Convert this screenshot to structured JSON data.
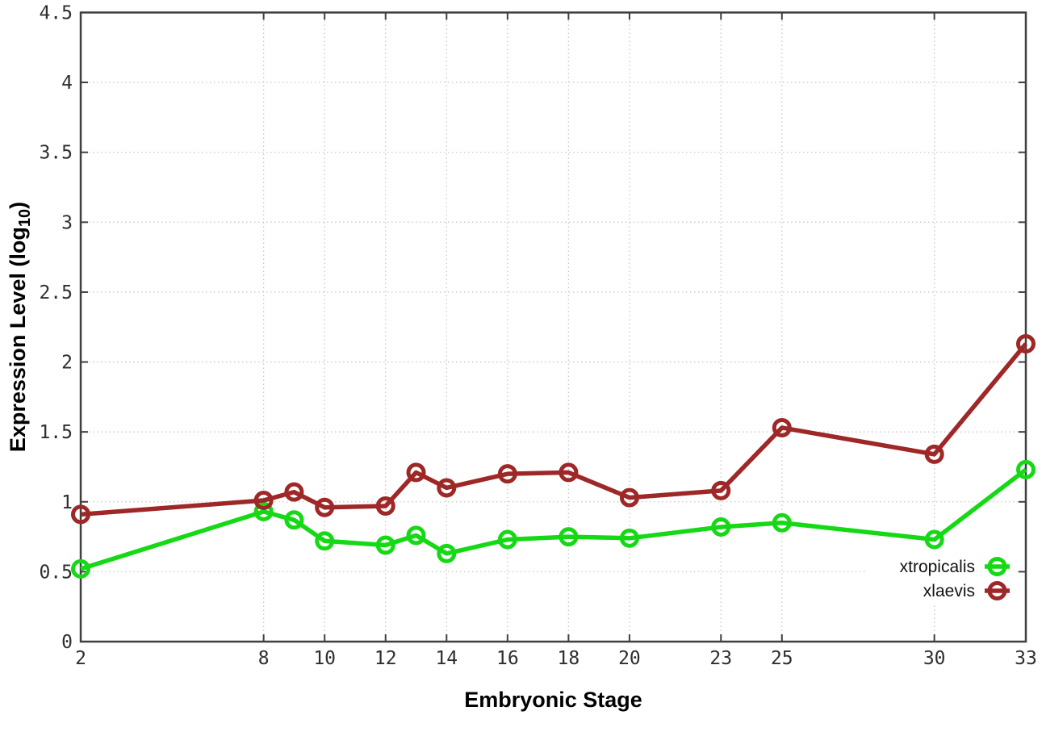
{
  "chart_data": {
    "type": "line",
    "title": "",
    "xlabel": "Embryonic Stage",
    "ylabel": "Expression Level (log10)",
    "ylabel_rich": {
      "pre": "Expression Level (log",
      "sub": "10",
      "post": ")"
    },
    "xlim": [
      2,
      33
    ],
    "ylim": [
      0,
      4.5
    ],
    "grid": true,
    "x": [
      2,
      8,
      9,
      10,
      12,
      13,
      14,
      16,
      18,
      20,
      23,
      25,
      30,
      33
    ],
    "x_tick_values": [
      2,
      8,
      10,
      12,
      14,
      16,
      18,
      20,
      23,
      25,
      30,
      33
    ],
    "x_tick_labels": [
      "2",
      "8",
      "10",
      "12",
      "14",
      "16",
      "18",
      "20",
      "23",
      "25",
      "30",
      "33"
    ],
    "y_tick_values": [
      0,
      0.5,
      1,
      1.5,
      2,
      2.5,
      3,
      3.5,
      4,
      4.5
    ],
    "y_tick_labels": [
      "0",
      "0.5",
      "1",
      "1.5",
      "2",
      "2.5",
      "3",
      "3.5",
      "4",
      "4.5"
    ],
    "series": [
      {
        "name": "xtropicalis",
        "color": "#16d916",
        "values": [
          0.52,
          0.93,
          0.87,
          0.72,
          0.69,
          0.76,
          0.63,
          0.73,
          0.75,
          0.74,
          0.82,
          0.85,
          0.73,
          1.23
        ]
      },
      {
        "name": "xlaevis",
        "color": "#9e2727",
        "values": [
          0.91,
          1.01,
          1.07,
          0.96,
          0.97,
          1.21,
          1.1,
          1.2,
          1.21,
          1.03,
          1.08,
          1.53,
          1.34,
          2.13
        ]
      }
    ],
    "legend": {
      "position": "inside-bottom-right",
      "entries": [
        "xtropicalis",
        "xlaevis"
      ]
    }
  },
  "style": {
    "background": "#ffffff",
    "grid_color": "#c9c9c9",
    "border_color": "#3f3f3f",
    "tick_color": "#3f3f3f",
    "tick_label_color": "#2e2e2e",
    "axis_title_color": "#000000"
  }
}
